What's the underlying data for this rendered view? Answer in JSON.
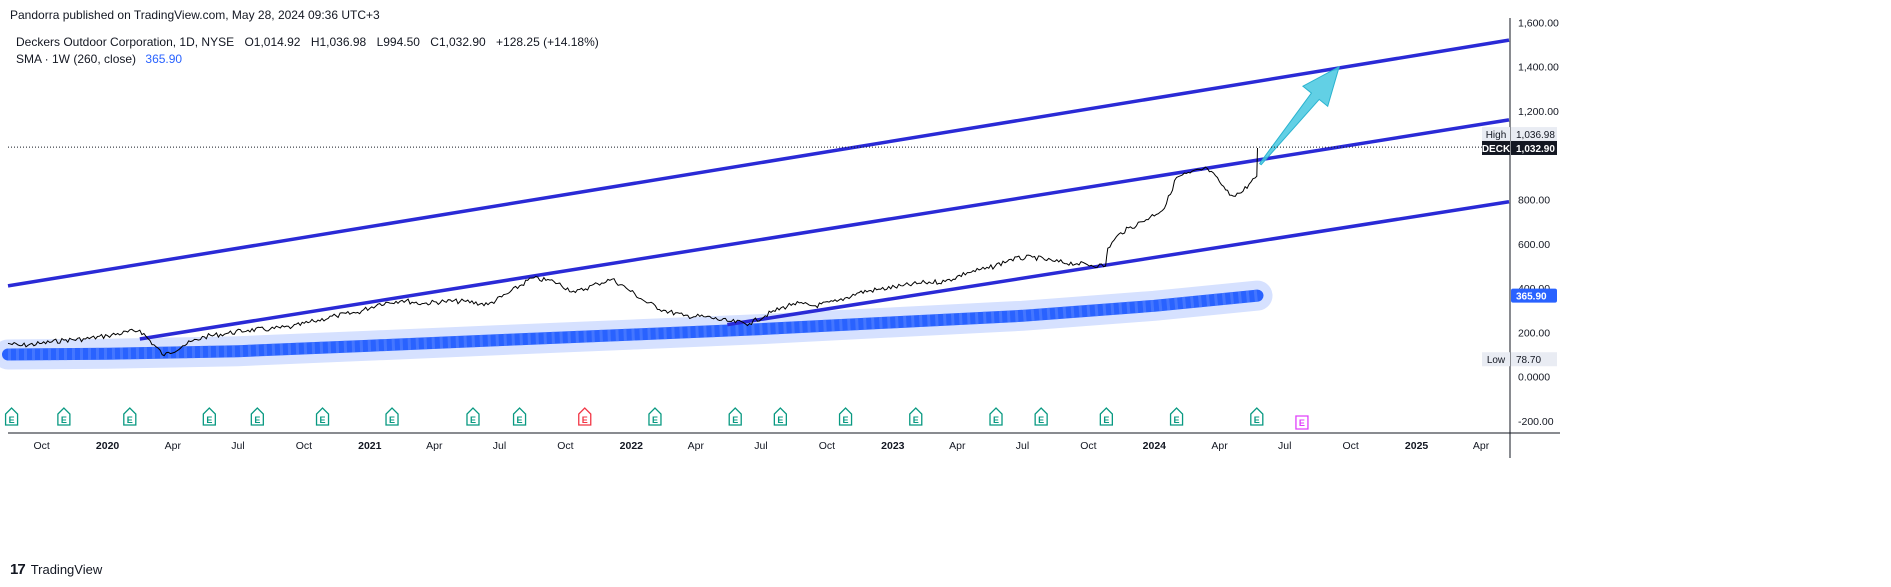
{
  "header": {
    "publisher_line": "Pandorra published on TradingView.com, May 28, 2024 09:36 UTC+3"
  },
  "legend": {
    "symbol": "Deckers Outdoor Corporation, 1D, NYSE",
    "open": "O1,014.92",
    "high": "H1,036.98",
    "low": "L994.50",
    "close": "C1,032.90",
    "change": "+128.25 (+14.18%)",
    "indicator": "SMA · 1W (260, close)",
    "indicator_value": "365.90"
  },
  "footer": {
    "brand": "TradingView"
  },
  "chart_data": {
    "type": "line",
    "ticker": "DECK",
    "y_axis_ticks": [
      "1,600.00",
      "1,400.00",
      "1,200.00",
      "800.00",
      "600.00",
      "400.00",
      "200.00",
      "0.0000",
      "-200.00"
    ],
    "x_axis_ticks": [
      "Oct",
      "2020",
      "Apr",
      "Jul",
      "Oct",
      "2021",
      "Apr",
      "Jul",
      "Oct",
      "2022",
      "Apr",
      "Jul",
      "Oct",
      "2023",
      "Apr",
      "Jul",
      "Oct",
      "2024",
      "Apr",
      "Jul",
      "Oct",
      "2025",
      "Apr"
    ],
    "year_ticks": [
      "2020",
      "2021",
      "2022",
      "2023",
      "2024",
      "2025"
    ],
    "ylim": [
      -250,
      1620
    ],
    "xlim": [
      "2019-08-15",
      "2025-05-10"
    ],
    "price_series": {
      "name": "DECK",
      "color": "#000000",
      "points": [
        [
          "2019-08-15",
          150
        ],
        [
          "2019-09-01",
          140
        ],
        [
          "2019-10-01",
          150
        ],
        [
          "2019-11-01",
          165
        ],
        [
          "2019-12-01",
          170
        ],
        [
          "2020-01-01",
          185
        ],
        [
          "2020-02-15",
          210
        ],
        [
          "2020-03-20",
          95
        ],
        [
          "2020-04-15",
          140
        ],
        [
          "2020-05-15",
          180
        ],
        [
          "2020-06-15",
          195
        ],
        [
          "2020-07-15",
          210
        ],
        [
          "2020-08-15",
          215
        ],
        [
          "2020-09-15",
          225
        ],
        [
          "2020-10-15",
          250
        ],
        [
          "2020-11-15",
          275
        ],
        [
          "2020-12-15",
          290
        ],
        [
          "2021-01-15",
          330
        ],
        [
          "2021-02-15",
          345
        ],
        [
          "2021-03-15",
          330
        ],
        [
          "2021-04-15",
          340
        ],
        [
          "2021-05-15",
          340
        ],
        [
          "2021-06-15",
          325
        ],
        [
          "2021-07-15",
          380
        ],
        [
          "2021-08-15",
          445
        ],
        [
          "2021-09-15",
          430
        ],
        [
          "2021-10-15",
          380
        ],
        [
          "2021-11-15",
          420
        ],
        [
          "2021-12-05",
          440
        ],
        [
          "2021-12-25",
          400
        ],
        [
          "2022-01-20",
          340
        ],
        [
          "2022-02-15",
          300
        ],
        [
          "2022-03-15",
          275
        ],
        [
          "2022-04-15",
          270
        ],
        [
          "2022-05-15",
          250
        ],
        [
          "2022-06-15",
          240
        ],
        [
          "2022-07-15",
          290
        ],
        [
          "2022-08-15",
          330
        ],
        [
          "2022-09-15",
          320
        ],
        [
          "2022-10-15",
          340
        ],
        [
          "2022-11-15",
          380
        ],
        [
          "2022-12-15",
          395
        ],
        [
          "2023-01-15",
          410
        ],
        [
          "2023-02-15",
          425
        ],
        [
          "2023-03-15",
          430
        ],
        [
          "2023-04-15",
          470
        ],
        [
          "2023-05-15",
          490
        ],
        [
          "2023-06-15",
          530
        ],
        [
          "2023-07-15",
          540
        ],
        [
          "2023-08-15",
          520
        ],
        [
          "2023-09-15",
          510
        ],
        [
          "2023-10-25",
          500
        ],
        [
          "2023-10-28",
          580
        ],
        [
          "2023-11-15",
          650
        ],
        [
          "2023-12-15",
          700
        ],
        [
          "2024-01-15",
          760
        ],
        [
          "2024-02-01",
          900
        ],
        [
          "2024-02-20",
          920
        ],
        [
          "2024-03-15",
          940
        ],
        [
          "2024-04-01",
          880
        ],
        [
          "2024-04-15",
          820
        ],
        [
          "2024-05-01",
          830
        ],
        [
          "2024-05-15",
          880
        ],
        [
          "2024-05-23",
          905
        ],
        [
          "2024-05-24",
          1032.9
        ]
      ]
    },
    "sma_series": {
      "name": "SMA · 1W (260, close)",
      "color": "#2962ff",
      "points": [
        [
          "2019-08-15",
          100
        ],
        [
          "2020-01-01",
          103
        ],
        [
          "2020-07-01",
          115
        ],
        [
          "2021-01-01",
          140
        ],
        [
          "2021-07-01",
          165
        ],
        [
          "2022-01-01",
          190
        ],
        [
          "2022-07-01",
          215
        ],
        [
          "2023-01-01",
          245
        ],
        [
          "2023-07-01",
          275
        ],
        [
          "2024-01-01",
          320
        ],
        [
          "2024-05-24",
          365.9
        ]
      ]
    },
    "trend_lines": [
      {
        "color": "#2a2ad6",
        "from": [
          "2019-08-15",
          410
        ],
        "to": [
          "2025-05-10",
          1520
        ]
      },
      {
        "color": "#2a2ad6",
        "from": [
          "2020-02-15",
          170
        ],
        "to": [
          "2025-05-10",
          1160
        ]
      },
      {
        "color": "#2a2ad6",
        "from": [
          "2022-05-15",
          235
        ],
        "to": [
          "2025-05-10",
          790
        ]
      }
    ],
    "arrow": {
      "color": "#46c8e0",
      "from": [
        "2024-05-28",
        960
      ],
      "to": [
        "2024-09-15",
        1400
      ]
    },
    "price_labels": [
      {
        "text": "High",
        "value": "1,036.98",
        "y": 1036.98,
        "style": "light"
      },
      {
        "text": "DECK",
        "value": "1,032.90",
        "y": 1032.9,
        "style": "dark"
      },
      {
        "text": "",
        "value": "365.90",
        "y": 365.9,
        "style": "blue"
      },
      {
        "text": "Low",
        "value": "78.70",
        "y": 78.7,
        "style": "light"
      }
    ],
    "earnings_markers": [
      {
        "date": "2019-08-20",
        "color": "#089981"
      },
      {
        "date": "2019-11-01",
        "color": "#089981"
      },
      {
        "date": "2020-02-01",
        "color": "#089981"
      },
      {
        "date": "2020-05-22",
        "color": "#089981"
      },
      {
        "date": "2020-07-28",
        "color": "#089981"
      },
      {
        "date": "2020-10-27",
        "color": "#089981"
      },
      {
        "date": "2021-02-01",
        "color": "#089981"
      },
      {
        "date": "2021-05-25",
        "color": "#089981"
      },
      {
        "date": "2021-07-29",
        "color": "#089981"
      },
      {
        "date": "2021-10-28",
        "color": "#f23645"
      },
      {
        "date": "2022-02-03",
        "color": "#089981"
      },
      {
        "date": "2022-05-26",
        "color": "#089981"
      },
      {
        "date": "2022-07-28",
        "color": "#089981"
      },
      {
        "date": "2022-10-27",
        "color": "#089981"
      },
      {
        "date": "2023-02-02",
        "color": "#089981"
      },
      {
        "date": "2023-05-25",
        "color": "#089981"
      },
      {
        "date": "2023-07-27",
        "color": "#089981"
      },
      {
        "date": "2023-10-26",
        "color": "#089981"
      },
      {
        "date": "2024-02-01",
        "color": "#089981"
      },
      {
        "date": "2024-05-23",
        "color": "#089981"
      },
      {
        "date": "2024-07-25",
        "color": "#e040fb"
      }
    ],
    "earnings_letter": "E",
    "grid": false
  }
}
